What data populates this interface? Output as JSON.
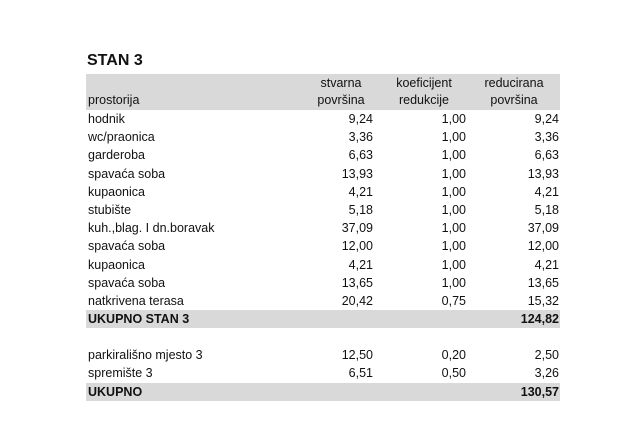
{
  "title": "STAN 3",
  "headers": {
    "room": "prostorija",
    "actual_1": "stvarna",
    "actual_2": "površina",
    "coef_1": "koeficijent",
    "coef_2": "redukcije",
    "reduced_1": "reducirana",
    "reduced_2": "površina"
  },
  "rows": [
    {
      "room": "hodnik",
      "actual": "9,24",
      "coef": "1,00",
      "reduced": "9,24"
    },
    {
      "room": "wc/praonica",
      "actual": "3,36",
      "coef": "1,00",
      "reduced": "3,36"
    },
    {
      "room": "garderoba",
      "actual": "6,63",
      "coef": "1,00",
      "reduced": "6,63"
    },
    {
      "room": "spavaća soba",
      "actual": "13,93",
      "coef": "1,00",
      "reduced": "13,93"
    },
    {
      "room": "kupaonica",
      "actual": "4,21",
      "coef": "1,00",
      "reduced": "4,21"
    },
    {
      "room": "stubište",
      "actual": "5,18",
      "coef": "1,00",
      "reduced": "5,18"
    },
    {
      "room": "kuh.,blag. I dn.boravak",
      "actual": "37,09",
      "coef": "1,00",
      "reduced": "37,09"
    },
    {
      "room": "spavaća soba",
      "actual": "12,00",
      "coef": "1,00",
      "reduced": "12,00"
    },
    {
      "room": "kupaonica",
      "actual": "4,21",
      "coef": "1,00",
      "reduced": "4,21"
    },
    {
      "room": "spavaća soba",
      "actual": "13,65",
      "coef": "1,00",
      "reduced": "13,65"
    },
    {
      "room": "natkrivena terasa",
      "actual": "20,42",
      "coef": "0,75",
      "reduced": "15,32"
    }
  ],
  "subtotal": {
    "label": "UKUPNO STAN 3",
    "value": "124,82"
  },
  "extras": [
    {
      "room": "parkirališno mjesto 3",
      "actual": "12,50",
      "coef": "0,20",
      "reduced": "2,50"
    },
    {
      "room": "spremište 3",
      "actual": "6,51",
      "coef": "0,50",
      "reduced": "3,26"
    }
  ],
  "total": {
    "label": "UKUPNO",
    "value": "130,57"
  }
}
